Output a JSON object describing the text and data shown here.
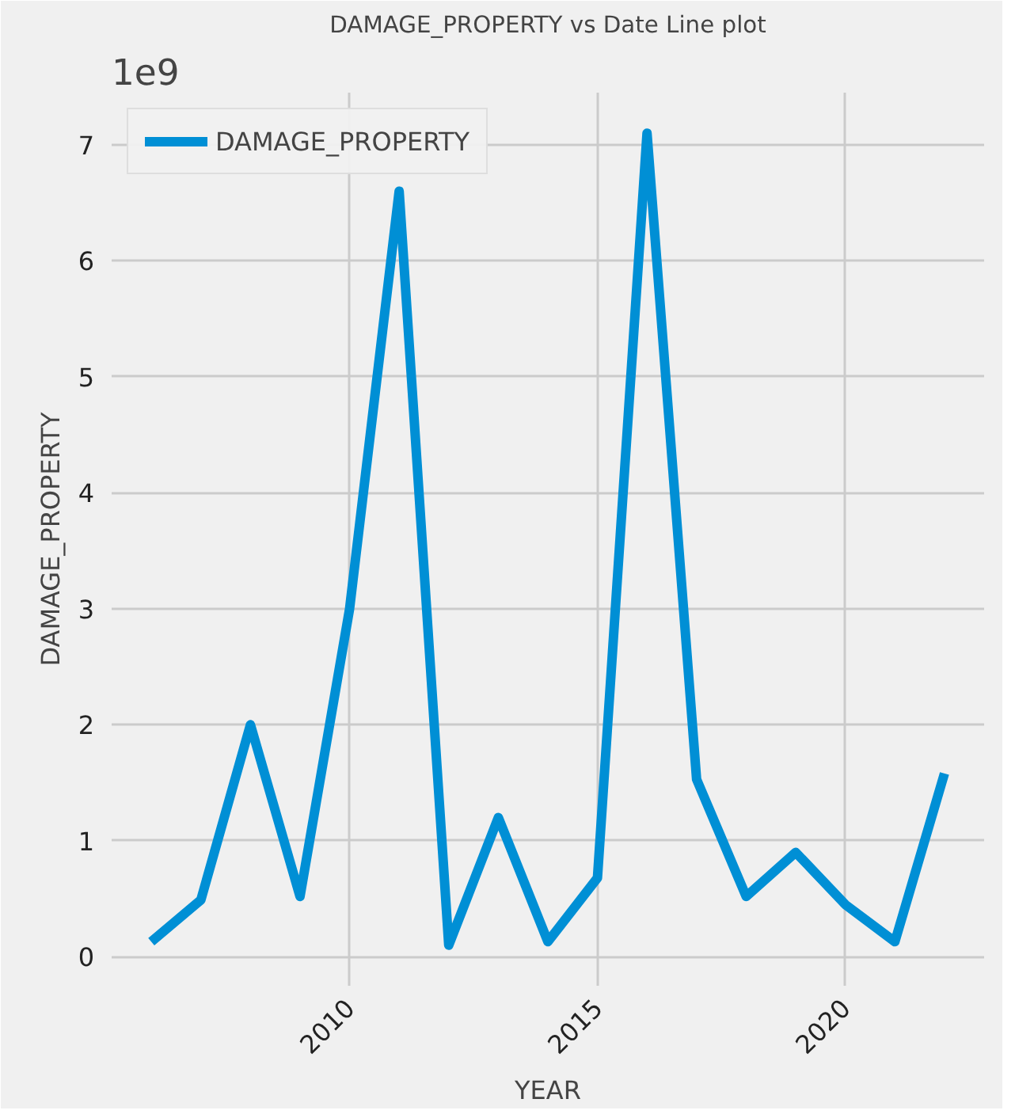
{
  "chart_data": {
    "type": "line",
    "title": "DAMAGE_PROPERTY vs Date Line plot",
    "xlabel": "YEAR",
    "ylabel": "DAMAGE_PROPERTY",
    "annotations": [
      "1e9"
    ],
    "x": [
      2006,
      2007,
      2008,
      2009,
      2010,
      2011,
      2012,
      2013,
      2014,
      2015,
      2016,
      2017,
      2018,
      2019,
      2020,
      2021,
      2022
    ],
    "series": [
      {
        "name": "DAMAGE_PROPERTY",
        "color": "#008fd5",
        "values": [
          0.13,
          0.49,
          2.0,
          0.52,
          3.0,
          6.6,
          0.1,
          1.2,
          0.13,
          0.68,
          7.1,
          1.53,
          0.52,
          0.9,
          0.45,
          0.13,
          1.58
        ]
      }
    ],
    "xlim": [
      2005.2,
      2022.8
    ],
    "ylim": [
      -0.25,
      7.45
    ],
    "xticks": [
      2010,
      2015,
      2020
    ],
    "yticks": [
      0,
      1,
      2,
      3,
      4,
      5,
      6,
      7
    ],
    "grid": true,
    "legend": "top left",
    "marker": "none",
    "line_style": "solid"
  }
}
